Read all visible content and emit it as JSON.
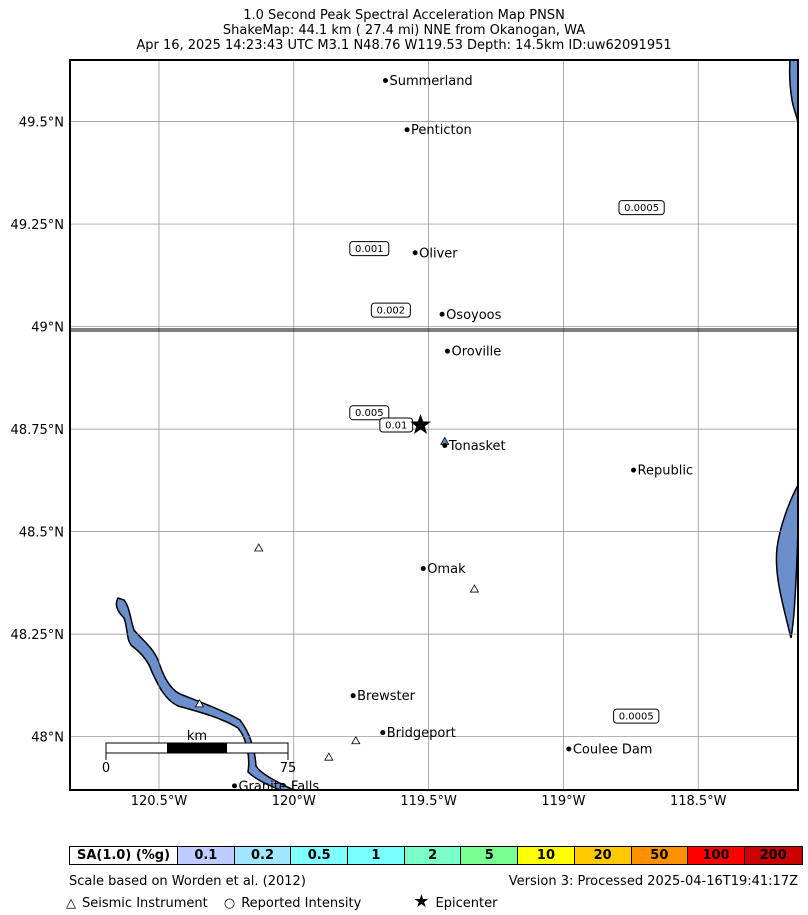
{
  "header": {
    "line1": "1.0 Second Peak Spectral Acceleration Map PNSN",
    "line2": "ShakeMap: 44.1 km (  27.4 mi) NNE from Okanogan, WA",
    "line3": "Apr 16, 2025 14:23:43 UTC M3.1 N48.76 W119.53 Depth: 14.5km ID:uw62091951"
  },
  "map": {
    "lon_range": [
      -120.83,
      -118.13
    ],
    "lat_range": [
      47.87,
      49.65
    ],
    "lon_ticks": [
      {
        "value": -120.5,
        "label": "120.5°W"
      },
      {
        "value": -120.0,
        "label": "120°W"
      },
      {
        "value": -119.5,
        "label": "119.5°W"
      },
      {
        "value": -119.0,
        "label": "119°W"
      },
      {
        "value": -118.5,
        "label": "118.5°W"
      }
    ],
    "lat_ticks": [
      {
        "value": 49.5,
        "label": "49.5°N"
      },
      {
        "value": 49.25,
        "label": "49.25°N"
      },
      {
        "value": 49.0,
        "label": "49°N"
      },
      {
        "value": 48.75,
        "label": "48.75°N"
      },
      {
        "value": 48.5,
        "label": "48.5°N"
      },
      {
        "value": 48.25,
        "label": "48.25°N"
      },
      {
        "value": 48.0,
        "label": "48°N"
      }
    ],
    "cities": [
      {
        "name": "Summerland",
        "lon": -119.66,
        "lat": 49.6
      },
      {
        "name": "Penticton",
        "lon": -119.58,
        "lat": 49.48
      },
      {
        "name": "Oliver",
        "lon": -119.55,
        "lat": 49.18
      },
      {
        "name": "Osoyoos",
        "lon": -119.45,
        "lat": 49.03
      },
      {
        "name": "Oroville",
        "lon": -119.43,
        "lat": 48.94
      },
      {
        "name": "Tonasket",
        "lon": -119.44,
        "lat": 48.71
      },
      {
        "name": "Republic",
        "lon": -118.74,
        "lat": 48.65
      },
      {
        "name": "Omak",
        "lon": -119.52,
        "lat": 48.41
      },
      {
        "name": "Brewster",
        "lon": -119.78,
        "lat": 48.1
      },
      {
        "name": "Bridgeport",
        "lon": -119.67,
        "lat": 48.01
      },
      {
        "name": "Coulee Dam",
        "lon": -118.98,
        "lat": 47.97
      },
      {
        "name": "Granite Falls",
        "lon": -120.22,
        "lat": 47.88
      }
    ],
    "epicenter": {
      "lon": -119.53,
      "lat": 48.76
    },
    "instruments": [
      {
        "lon": -119.44,
        "lat": 48.72,
        "color": "#5b8fc7"
      },
      {
        "lon": -120.13,
        "lat": 48.46,
        "color": "#ffffff"
      },
      {
        "lon": -119.33,
        "lat": 48.36,
        "color": "#ffffff"
      },
      {
        "lon": -120.35,
        "lat": 48.08,
        "color": "#ffffff"
      },
      {
        "lon": -119.77,
        "lat": 47.99,
        "color": "#ffffff"
      },
      {
        "lon": -119.87,
        "lat": 47.95,
        "color": "#ffffff"
      }
    ],
    "contour_labels": [
      {
        "text": "0.0005",
        "lon": -118.71,
        "lat": 49.29
      },
      {
        "text": "0.001",
        "lon": -119.72,
        "lat": 49.19
      },
      {
        "text": "0.002",
        "lon": -119.64,
        "lat": 49.04
      },
      {
        "text": "0.005",
        "lon": -119.72,
        "lat": 48.79
      },
      {
        "text": "0.01",
        "lon": -119.62,
        "lat": 48.76
      },
      {
        "text": "0.0005",
        "lon": -118.73,
        "lat": 48.05
      }
    ],
    "scale_bar": {
      "start_label": "0",
      "end_label": "75",
      "unit_label": "km"
    },
    "water_color": "#6b8fcc"
  },
  "intensity_scale": {
    "label": "SA(1.0) (%g)",
    "cells": [
      {
        "value": "0.1",
        "color": "#bfccff"
      },
      {
        "value": "0.2",
        "color": "#a0e6ff"
      },
      {
        "value": "0.5",
        "color": "#80ffff"
      },
      {
        "value": "1",
        "color": "#7affff"
      },
      {
        "value": "2",
        "color": "#7affc8"
      },
      {
        "value": "5",
        "color": "#7aff93"
      },
      {
        "value": "10",
        "color": "#ffff00"
      },
      {
        "value": "20",
        "color": "#ffc800"
      },
      {
        "value": "50",
        "color": "#ff9100"
      },
      {
        "value": "100",
        "color": "#ff0000"
      },
      {
        "value": "200",
        "color": "#c80000"
      }
    ]
  },
  "footer": {
    "left": "Scale based on Worden et al. (2012)",
    "right": "Version 3: Processed 2025-04-16T19:41:17Z",
    "legend_instrument": "Seismic Instrument",
    "legend_reported": "Reported Intensity",
    "legend_epicenter": "Epicenter"
  }
}
